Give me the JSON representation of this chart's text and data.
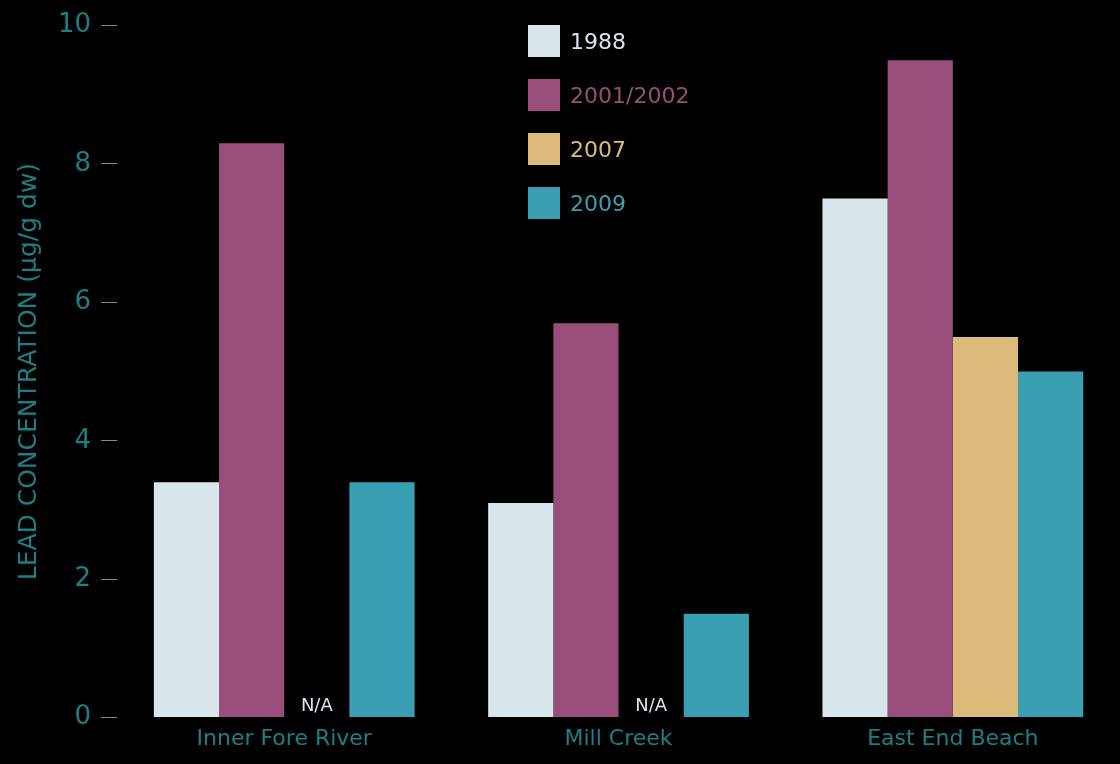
{
  "chart_data": {
    "type": "bar",
    "ylabel": "LEAD CONCENTRATION (µg/g dw)",
    "categories": [
      "Inner Fore River",
      "Mill Creek",
      "East End Beach"
    ],
    "series": [
      {
        "name": "1988",
        "color": "#d8e6ec",
        "values": [
          3.4,
          3.1,
          7.5
        ]
      },
      {
        "name": "2001/2002",
        "color": "#984d7b",
        "values": [
          8.3,
          5.7,
          9.5
        ]
      },
      {
        "name": "2007",
        "color": "#dcbb7a",
        "values": [
          null,
          null,
          5.5
        ]
      },
      {
        "name": "2009",
        "color": "#3a9fb2",
        "values": [
          3.4,
          1.5,
          5.0
        ]
      }
    ],
    "ylim": [
      0,
      10
    ],
    "yticks": [
      0,
      2,
      4,
      6,
      8,
      10
    ],
    "grid": false,
    "legend": "top",
    "annotations": [
      {
        "text": "N/A",
        "x": "Inner Fore River",
        "y": 0
      },
      {
        "text": "N/A",
        "x": "Mill Creek",
        "y": 0
      }
    ]
  }
}
